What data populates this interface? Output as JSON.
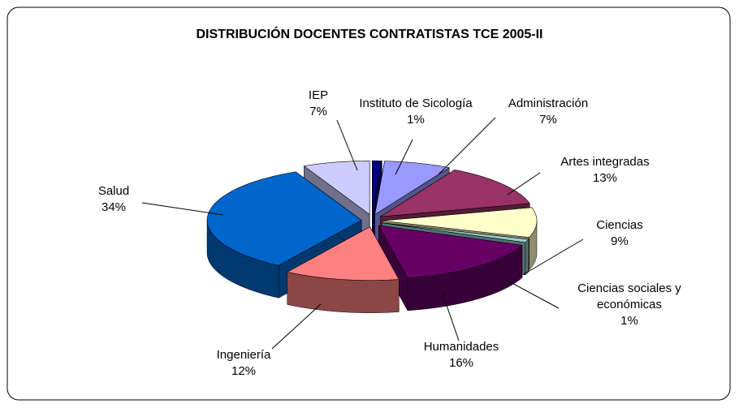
{
  "chart_data": {
    "type": "pie3d",
    "title": "DISTRIBUCIÓN DOCENTES CONTRATISTAS TCE 2005-II",
    "categories": [
      "Instituto de Sicología",
      "Administración",
      "Artes integradas",
      "Ciencias",
      "Ciencias sociales y económicas",
      "Humanidades",
      "Ingeniería",
      "Salud",
      "IEP"
    ],
    "values": [
      1,
      7,
      13,
      9,
      1,
      16,
      12,
      34,
      7
    ],
    "value_labels": [
      "1%",
      "7%",
      "13%",
      "9%",
      "1%",
      "16%",
      "12%",
      "34%",
      "7%"
    ],
    "colors": [
      "#000080",
      "#9999ff",
      "#993366",
      "#ffffcc",
      "#99cccc",
      "#660066",
      "#ff8080",
      "#0066cc",
      "#ccccff"
    ]
  }
}
